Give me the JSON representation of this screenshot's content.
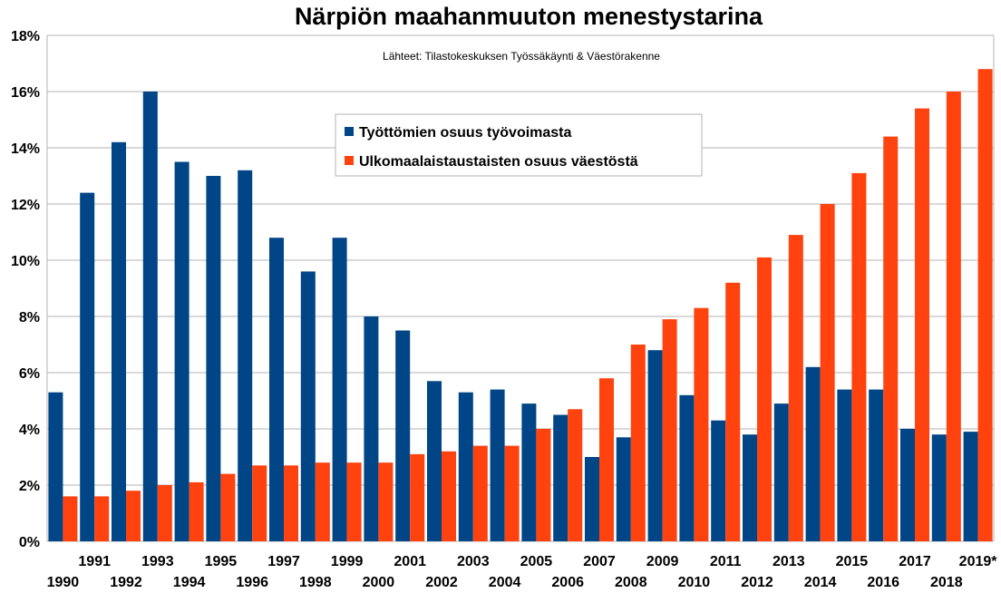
{
  "chart_data": {
    "type": "bar",
    "title": "Närpiön maahanmuuton menestystarina",
    "subtitle": "Lähteet: Tilastokeskuksen Työssäkäynti & Väestörakenne",
    "xlabel": "",
    "ylabel": "",
    "ylim": [
      0,
      18
    ],
    "yticks": [
      "0%",
      "2%",
      "4%",
      "6%",
      "8%",
      "10%",
      "12%",
      "14%",
      "16%",
      "18%"
    ],
    "categories": [
      "1990",
      "1991",
      "1992",
      "1993",
      "1994",
      "1995",
      "1996",
      "1997",
      "1998",
      "1999",
      "2000",
      "2001",
      "2002",
      "2003",
      "2004",
      "2005",
      "2006",
      "2007",
      "2008",
      "2009",
      "2010",
      "2011",
      "2012",
      "2013",
      "2014",
      "2015",
      "2016",
      "2017",
      "2018",
      "2019*"
    ],
    "series": [
      {
        "name": "Työttömien osuus työvoimasta",
        "color": "#004586",
        "values": [
          5.3,
          12.4,
          14.2,
          16.0,
          13.5,
          13.0,
          13.2,
          10.8,
          9.6,
          10.8,
          8.0,
          7.5,
          5.7,
          5.3,
          5.4,
          4.9,
          4.5,
          3.0,
          3.7,
          6.8,
          5.2,
          4.3,
          3.8,
          4.9,
          6.2,
          5.4,
          5.4,
          4.0,
          3.8,
          3.9
        ]
      },
      {
        "name": "Ulkomaalaistaustaisten osuus väestöstä",
        "color": "#ff420e",
        "values": [
          1.6,
          1.6,
          1.8,
          2.0,
          2.1,
          2.4,
          2.7,
          2.7,
          2.8,
          2.8,
          2.8,
          3.1,
          3.2,
          3.4,
          3.4,
          4.0,
          4.7,
          5.8,
          7.0,
          7.9,
          8.3,
          9.2,
          10.1,
          10.9,
          12.0,
          13.1,
          14.4,
          15.4,
          16.0,
          16.8
        ]
      }
    ],
    "legend_position": "top-center",
    "grid": true
  }
}
